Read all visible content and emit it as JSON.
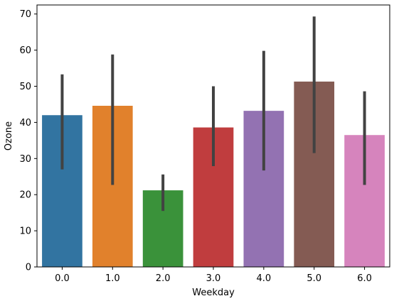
{
  "chart_data": {
    "type": "bar",
    "title": "",
    "xlabel": "Weekday",
    "ylabel": "Ozone",
    "ylim": [
      0,
      72.5
    ],
    "yticks": [
      0,
      10,
      20,
      30,
      40,
      50,
      60,
      70
    ],
    "categories": [
      "0.0",
      "1.0",
      "2.0",
      "3.0",
      "4.0",
      "5.0",
      "6.0"
    ],
    "values": [
      42.0,
      44.6,
      21.2,
      38.6,
      43.2,
      51.3,
      36.5
    ],
    "error_low": [
      27.0,
      22.7,
      15.5,
      27.9,
      26.7,
      31.5,
      22.7
    ],
    "error_high": [
      53.3,
      58.8,
      25.6,
      50.0,
      59.8,
      69.3,
      48.6
    ],
    "colors": [
      "#3274a1",
      "#e1812c",
      "#3a923a",
      "#c03d3e",
      "#9372b2",
      "#845b53",
      "#d684bd"
    ],
    "error_bar_color": "#424242",
    "grid": false,
    "legend": "none"
  }
}
